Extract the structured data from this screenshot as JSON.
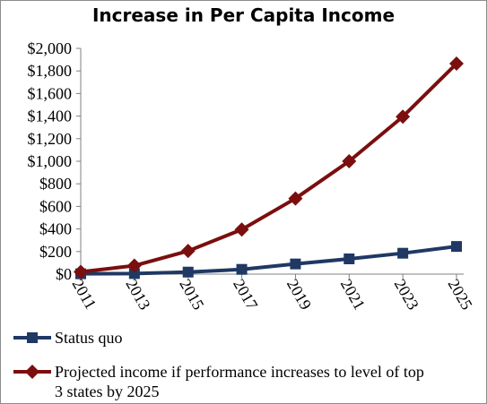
{
  "chart_data": {
    "type": "line",
    "title": "Increase in Per Capita Income",
    "xlabel": "",
    "ylabel": "",
    "x": [
      "2011",
      "2013",
      "2015",
      "2017",
      "2019",
      "2021",
      "2023",
      "2025"
    ],
    "ylim": [
      0,
      2000
    ],
    "yticks": [
      "$0",
      "$200",
      "$400",
      "$600",
      "$800",
      "$1,000",
      "$1,200",
      "$1,400",
      "$1,600",
      "$1,800",
      "$2,000"
    ],
    "grid": false,
    "legend": "bottom",
    "series": [
      {
        "name": "Status quo",
        "color": "#1f3864",
        "marker": "square",
        "values": [
          3,
          5,
          18,
          42,
          90,
          135,
          185,
          245
        ]
      },
      {
        "name": "Projected income if performance increases to level of top 3 states by 2025",
        "legend_lines": [
          "Projected income if performance increases to level of top",
          "3 states by 2025"
        ],
        "color": "#7b0e0e",
        "marker": "diamond",
        "values": [
          20,
          75,
          205,
          395,
          670,
          1000,
          1395,
          1865
        ]
      }
    ]
  }
}
